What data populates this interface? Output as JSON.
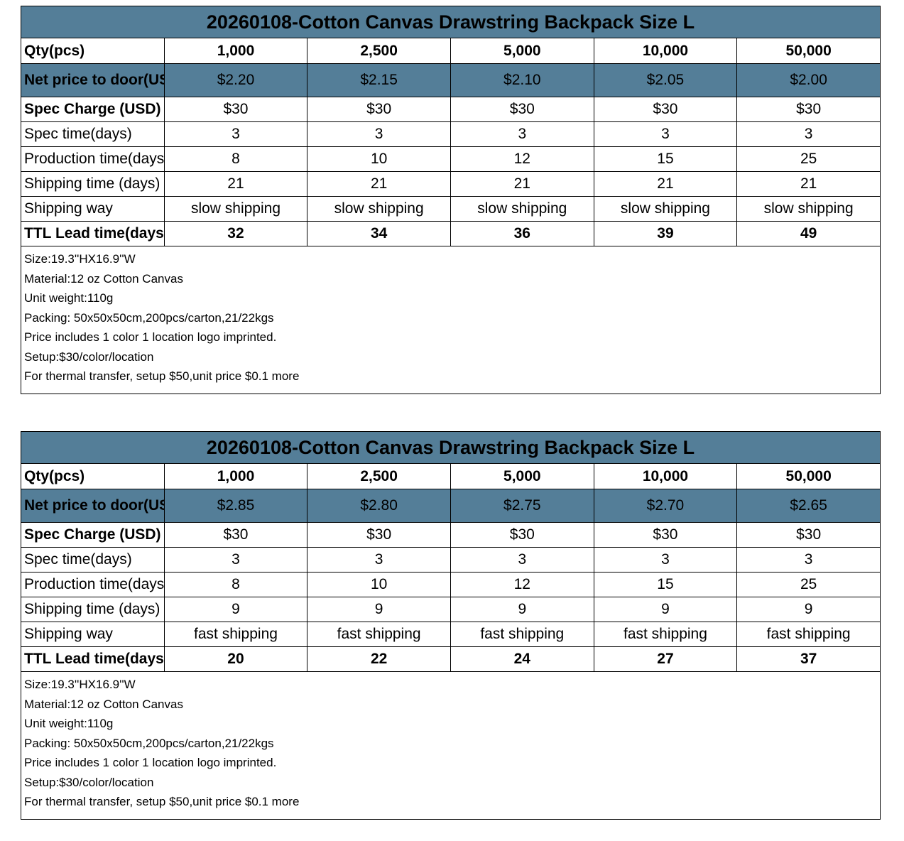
{
  "quotes": [
    {
      "title": "20260108-Cotton Canvas Drawstring Backpack Size L",
      "rows": [
        {
          "label": "Qty(pcs)",
          "values": [
            "1,000",
            "2,500",
            "5,000",
            "10,000",
            "50,000"
          ],
          "style": "qty"
        },
        {
          "label": "Net price to door(USD/pc)",
          "values": [
            "$2.20",
            "$2.15",
            "$2.10",
            "$2.05",
            "$2.00"
          ],
          "style": "highlight"
        },
        {
          "label": "Spec Charge (USD)",
          "values": [
            "$30",
            "$30",
            "$30",
            "$30",
            "$30"
          ],
          "style": "boldlabel"
        },
        {
          "label": "Spec time(days)",
          "values": [
            "3",
            "3",
            "3",
            "3",
            "3"
          ],
          "style": "normal"
        },
        {
          "label": "Production time(days)",
          "values": [
            "8",
            "10",
            "12",
            "15",
            "25"
          ],
          "style": "normal"
        },
        {
          "label": "Shipping time (days)",
          "values": [
            "21",
            "21",
            "21",
            "21",
            "21"
          ],
          "style": "normal"
        },
        {
          "label": "Shipping way",
          "values": [
            "slow shipping",
            "slow shipping",
            "slow shipping",
            "slow shipping",
            "slow shipping"
          ],
          "style": "normal"
        },
        {
          "label": "TTL Lead time(days)",
          "values": [
            "32",
            "34",
            "36",
            "39",
            "49"
          ],
          "style": "bold"
        }
      ],
      "notes": [
        "Size:19.3''HX16.9''W",
        "Material:12 oz Cotton Canvas",
        "Unit weight:110g",
        "Packing: 50x50x50cm,200pcs/carton,21/22kgs",
        "Price includes 1 color 1 location logo imprinted.",
        "Setup:$30/color/location",
        "For thermal transfer, setup $50,unit price $0.1 more"
      ]
    },
    {
      "title": "20260108-Cotton Canvas Drawstring Backpack Size L",
      "rows": [
        {
          "label": "Qty(pcs)",
          "values": [
            "1,000",
            "2,500",
            "5,000",
            "10,000",
            "50,000"
          ],
          "style": "qty"
        },
        {
          "label": "Net price to door(USD/pc)",
          "values": [
            "$2.85",
            "$2.80",
            "$2.75",
            "$2.70",
            "$2.65"
          ],
          "style": "highlight"
        },
        {
          "label": "Spec Charge (USD)",
          "values": [
            "$30",
            "$30",
            "$30",
            "$30",
            "$30"
          ],
          "style": "boldlabel"
        },
        {
          "label": "Spec time(days)",
          "values": [
            "3",
            "3",
            "3",
            "3",
            "3"
          ],
          "style": "normal"
        },
        {
          "label": "Production time(days)",
          "values": [
            "8",
            "10",
            "12",
            "15",
            "25"
          ],
          "style": "normal"
        },
        {
          "label": "Shipping time (days)",
          "values": [
            "9",
            "9",
            "9",
            "9",
            "9"
          ],
          "style": "normal"
        },
        {
          "label": "Shipping way",
          "values": [
            "fast shipping",
            "fast shipping",
            "fast shipping",
            "fast shipping",
            "fast shipping"
          ],
          "style": "normal"
        },
        {
          "label": "TTL Lead time(days)",
          "values": [
            "20",
            "22",
            "24",
            "27",
            "37"
          ],
          "style": "bold"
        }
      ],
      "notes": [
        "Size:19.3''HX16.9''W",
        "Material:12 oz Cotton Canvas",
        "Unit weight:110g",
        "Packing: 50x50x50cm,200pcs/carton,21/22kgs",
        "Price includes 1 color 1 location logo imprinted.",
        "Setup:$30/color/location",
        "For thermal transfer, setup $50,unit price $0.1 more"
      ]
    }
  ],
  "colors": {
    "header_fill": "#547E98",
    "border": "#000000"
  }
}
